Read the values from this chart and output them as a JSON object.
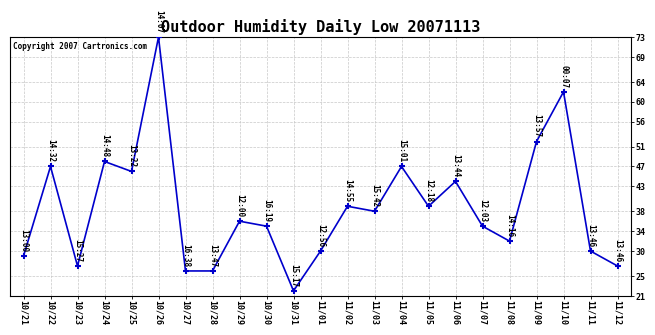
{
  "title": "Outdoor Humidity Daily Low 20071113",
  "copyright": "Copyright 2007 Cartronics.com",
  "line_color": "#0000CC",
  "background_color": "#ffffff",
  "grid_color": "#c8c8c8",
  "x_labels": [
    "10/21",
    "10/22",
    "10/23",
    "10/24",
    "10/25",
    "10/26",
    "10/27",
    "10/28",
    "10/29",
    "10/30",
    "10/31",
    "11/01",
    "11/02",
    "11/03",
    "11/04",
    "11/05",
    "11/06",
    "11/07",
    "11/08",
    "11/09",
    "11/10",
    "11/11",
    "11/12"
  ],
  "y_values": [
    29,
    47,
    27,
    48,
    46,
    73,
    26,
    26,
    36,
    35,
    22,
    30,
    39,
    38,
    47,
    39,
    44,
    35,
    32,
    52,
    62,
    30,
    27
  ],
  "point_labels": [
    "13:00",
    "14:32",
    "15:27",
    "14:48",
    "13:22",
    "14:07",
    "16:38",
    "13:47",
    "12:00",
    "16:19",
    "15:17",
    "12:56",
    "14:55",
    "15:42",
    "15:01",
    "12:18",
    "13:44",
    "12:03",
    "14:16",
    "13:57",
    "00:07",
    "13:46",
    "13:46"
  ],
  "ylim": [
    21,
    73
  ],
  "yticks": [
    21,
    25,
    30,
    34,
    38,
    43,
    47,
    51,
    56,
    60,
    64,
    69,
    73
  ],
  "title_fontsize": 11,
  "label_fontsize": 5.5,
  "axis_fontsize": 6,
  "marker": "+",
  "marker_size": 5,
  "line_width": 1.2
}
